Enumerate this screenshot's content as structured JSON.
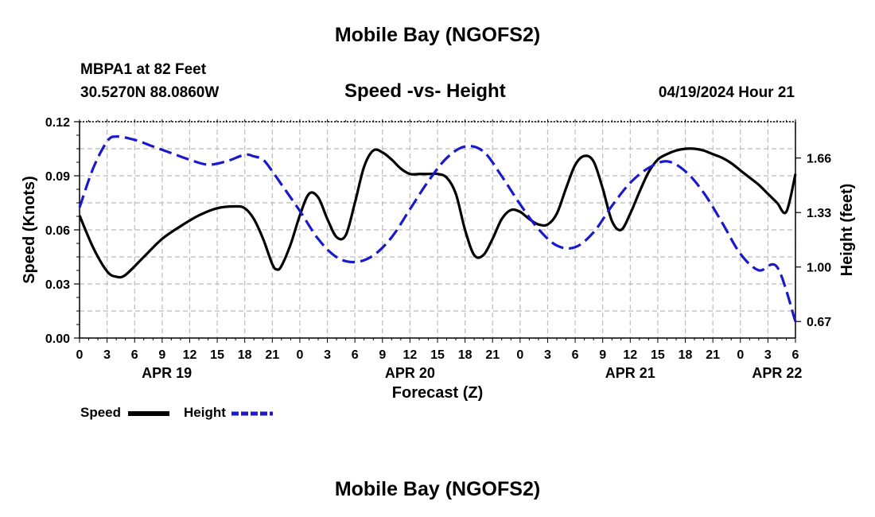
{
  "header": {
    "title": "Mobile Bay (NGOFS2)",
    "station": "MBPA1 at 82 Feet",
    "coords": "30.5270N  88.0860W",
    "subtitle": "Speed -vs- Height",
    "datetime": "04/19/2024 Hour 21"
  },
  "footer": {
    "title": "Mobile Bay (NGOFS2)"
  },
  "legend": {
    "speed_label": "Speed",
    "height_label": "Height"
  },
  "colors": {
    "speed": "#000000",
    "height": "#1a1acc",
    "grid": "#bbbbbb"
  },
  "chart_data": {
    "type": "line",
    "title": "Speed -vs- Height",
    "xlabel": "Forecast (Z)",
    "ylabel": "Speed (Knots)",
    "y2label": "Height (feet)",
    "xlim": [
      0,
      78
    ],
    "ylim": [
      0,
      0.12
    ],
    "y2lim": [
      0.57,
      1.88
    ],
    "x_ticks": [
      0,
      3,
      6,
      9,
      12,
      15,
      18,
      21,
      24,
      27,
      30,
      33,
      36,
      39,
      42,
      45,
      48,
      51,
      54,
      57,
      60,
      63,
      66,
      69,
      72,
      75,
      78
    ],
    "x_tick_labels": [
      "0",
      "3",
      "6",
      "9",
      "12",
      "15",
      "18",
      "21",
      "0",
      "3",
      "6",
      "9",
      "12",
      "15",
      "18",
      "21",
      "0",
      "3",
      "6",
      "9",
      "12",
      "15",
      "18",
      "21",
      "0",
      "3",
      "6"
    ],
    "date_labels": [
      {
        "label": "APR 19",
        "x": 9.5
      },
      {
        "label": "APR 20",
        "x": 36
      },
      {
        "label": "APR 21",
        "x": 60
      },
      {
        "label": "APR 22",
        "x": 76
      }
    ],
    "y_ticks": [
      0.0,
      0.03,
      0.06,
      0.09,
      0.12
    ],
    "y_tick_labels": [
      "0.00",
      "0.03",
      "0.06",
      "0.09",
      "0.12"
    ],
    "y2_ticks": [
      0.67,
      1.0,
      1.33,
      1.66
    ],
    "y2_tick_labels": [
      "0.67",
      "1.00",
      "1.33",
      "1.66"
    ],
    "series": [
      {
        "name": "Speed",
        "axis": "left",
        "x": [
          0,
          1.5,
          3,
          4,
          5,
          7,
          9,
          11,
          13,
          15,
          17,
          18,
          19,
          20,
          21,
          21.5,
          22,
          23,
          24,
          25,
          26,
          27,
          28,
          29,
          30,
          31,
          32,
          33,
          34,
          35,
          36,
          37,
          38,
          39,
          40,
          41,
          42,
          43,
          44,
          45,
          46,
          47,
          48,
          49,
          50,
          51,
          52,
          53,
          54,
          55,
          56,
          57,
          58,
          59,
          60,
          61,
          62,
          63,
          64,
          65,
          66,
          67,
          68,
          69,
          70,
          71,
          72,
          73,
          74,
          75,
          76,
          77,
          78
        ],
        "values": [
          0.068,
          0.05,
          0.037,
          0.034,
          0.035,
          0.045,
          0.055,
          0.062,
          0.068,
          0.072,
          0.073,
          0.072,
          0.066,
          0.055,
          0.041,
          0.038,
          0.04,
          0.052,
          0.068,
          0.08,
          0.078,
          0.066,
          0.056,
          0.057,
          0.075,
          0.095,
          0.104,
          0.103,
          0.099,
          0.094,
          0.091,
          0.091,
          0.091,
          0.091,
          0.089,
          0.08,
          0.06,
          0.046,
          0.046,
          0.055,
          0.066,
          0.071,
          0.07,
          0.066,
          0.063,
          0.063,
          0.069,
          0.083,
          0.096,
          0.101,
          0.098,
          0.083,
          0.065,
          0.06,
          0.069,
          0.081,
          0.092,
          0.099,
          0.102,
          0.104,
          0.105,
          0.105,
          0.104,
          0.102,
          0.1,
          0.097,
          0.093,
          0.089,
          0.085,
          0.08,
          0.075,
          0.07,
          0.091
        ]
      },
      {
        "name": "Height",
        "axis": "right",
        "x": [
          0,
          1.5,
          3,
          4,
          6,
          8,
          10,
          12,
          14,
          16,
          18,
          19,
          20,
          21,
          22,
          24,
          26,
          28,
          30,
          32,
          34,
          36,
          38,
          40,
          42,
          44,
          46,
          48,
          50,
          52,
          54,
          56,
          58,
          60,
          62,
          64,
          66,
          68,
          70,
          72,
          74,
          76,
          78
        ],
        "values": [
          1.36,
          1.6,
          1.76,
          1.79,
          1.77,
          1.73,
          1.69,
          1.65,
          1.62,
          1.64,
          1.68,
          1.67,
          1.65,
          1.58,
          1.5,
          1.34,
          1.17,
          1.06,
          1.03,
          1.07,
          1.18,
          1.35,
          1.52,
          1.66,
          1.73,
          1.7,
          1.55,
          1.38,
          1.23,
          1.13,
          1.12,
          1.21,
          1.37,
          1.51,
          1.6,
          1.64,
          1.58,
          1.45,
          1.27,
          1.08,
          0.98,
          1.0,
          0.67
        ]
      }
    ]
  }
}
